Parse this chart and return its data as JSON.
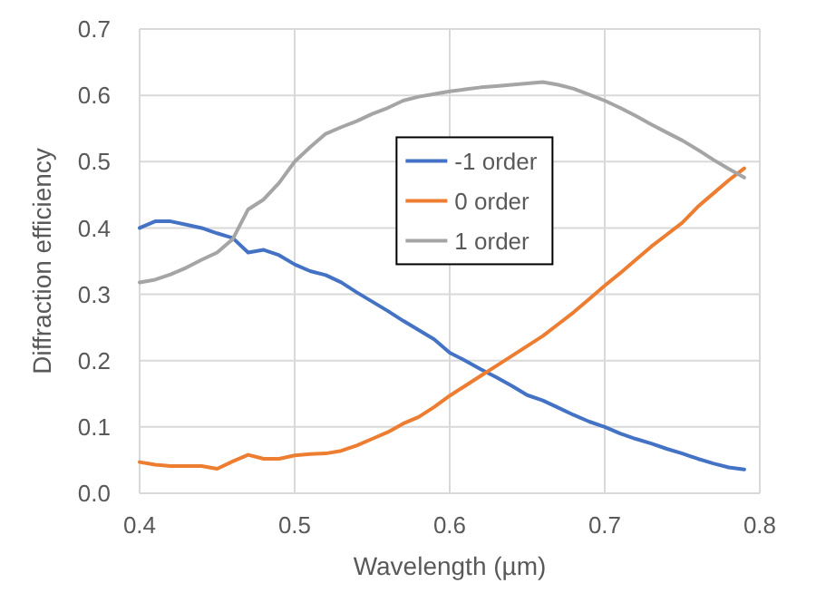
{
  "chart_data": {
    "type": "line",
    "xlabel": "Wavelength (µm)",
    "ylabel": "Diffraction efficiency",
    "x": [
      0.4,
      0.41,
      0.42,
      0.43,
      0.44,
      0.45,
      0.46,
      0.47,
      0.48,
      0.49,
      0.5,
      0.51,
      0.52,
      0.53,
      0.54,
      0.55,
      0.56,
      0.57,
      0.58,
      0.59,
      0.6,
      0.61,
      0.62,
      0.63,
      0.64,
      0.65,
      0.66,
      0.67,
      0.68,
      0.69,
      0.7,
      0.71,
      0.72,
      0.73,
      0.74,
      0.75,
      0.76,
      0.77,
      0.78,
      0.79
    ],
    "series": [
      {
        "name": "-1 order",
        "color": "#4472c4",
        "values": [
          0.4,
          0.41,
          0.41,
          0.405,
          0.4,
          0.392,
          0.385,
          0.363,
          0.367,
          0.359,
          0.345,
          0.335,
          0.329,
          0.318,
          0.303,
          0.289,
          0.275,
          0.26,
          0.246,
          0.232,
          0.212,
          0.2,
          0.187,
          0.175,
          0.162,
          0.148,
          0.14,
          0.129,
          0.118,
          0.108,
          0.1,
          0.09,
          0.082,
          0.075,
          0.067,
          0.06,
          0.052,
          0.045,
          0.039,
          0.036
        ]
      },
      {
        "name": "0 order",
        "color": "#ed7d31",
        "values": [
          0.047,
          0.043,
          0.041,
          0.041,
          0.041,
          0.037,
          0.048,
          0.058,
          0.052,
          0.052,
          0.057,
          0.059,
          0.06,
          0.064,
          0.072,
          0.082,
          0.092,
          0.105,
          0.115,
          0.13,
          0.147,
          0.162,
          0.177,
          0.192,
          0.207,
          0.222,
          0.237,
          0.255,
          0.273,
          0.293,
          0.313,
          0.332,
          0.352,
          0.372,
          0.39,
          0.408,
          0.432,
          0.452,
          0.472,
          0.49
        ]
      },
      {
        "name": "1 order",
        "color": "#a5a5a5",
        "values": [
          0.318,
          0.322,
          0.33,
          0.34,
          0.352,
          0.363,
          0.383,
          0.428,
          0.443,
          0.468,
          0.5,
          0.522,
          0.542,
          0.552,
          0.561,
          0.572,
          0.581,
          0.592,
          0.598,
          0.602,
          0.606,
          0.609,
          0.612,
          0.614,
          0.616,
          0.618,
          0.62,
          0.616,
          0.61,
          0.601,
          0.592,
          0.581,
          0.569,
          0.556,
          0.544,
          0.532,
          0.518,
          0.503,
          0.489,
          0.476
        ]
      }
    ],
    "xlim": [
      0.4,
      0.8
    ],
    "xticks": [
      0.4,
      0.5,
      0.6,
      0.7,
      0.8
    ],
    "ylim": [
      0,
      0.7
    ],
    "yticks": [
      {
        "value": 0,
        "label": "0.0"
      },
      0.1,
      0.2,
      0.3,
      0.4,
      0.5,
      0.6,
      0.7
    ],
    "grid": true,
    "legend": "center"
  }
}
